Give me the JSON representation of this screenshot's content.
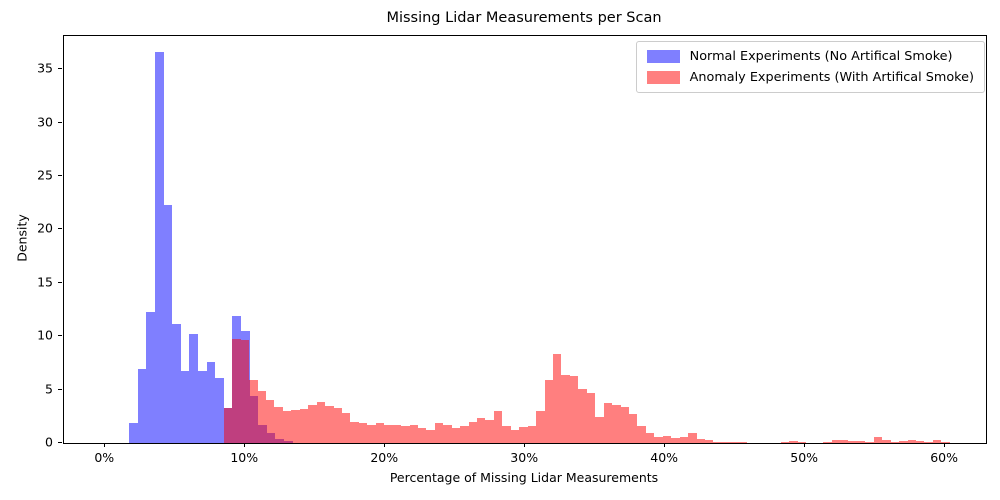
{
  "chart_data": {
    "type": "histogram",
    "title": "Missing Lidar Measurements per Scan",
    "xlabel": "Percentage of Missing Lidar Measurements",
    "ylabel": "Density",
    "x_tick_values": [
      0,
      10,
      20,
      30,
      40,
      50,
      60
    ],
    "x_tick_labels": [
      "0%",
      "10%",
      "20%",
      "30%",
      "40%",
      "50%",
      "60%"
    ],
    "y_tick_values": [
      0,
      5,
      10,
      15,
      20,
      25,
      30,
      35
    ],
    "y_tick_labels": [
      "0",
      "5",
      "10",
      "15",
      "20",
      "25",
      "30",
      "35"
    ],
    "xlim": [
      -2.95,
      62.92
    ],
    "ylim": [
      0,
      38.1
    ],
    "grid": false,
    "legend_position": "upper right",
    "overlap_blend_color": "#BF3F7F",
    "series": [
      {
        "name": "Normal Experiments (No Artifical Smoke)",
        "color": "#0000FF",
        "opacity": 0.5,
        "swatch_color": "#7F7FFF",
        "bin_start_pct": 1.7,
        "bin_width_pct": 0.615,
        "densities": [
          1.9,
          6.9,
          12.3,
          36.6,
          22.3,
          11.1,
          6.7,
          10.2,
          6.7,
          7.6,
          6.1,
          3.3,
          11.9,
          10.5,
          4.4,
          1.7,
          0.9,
          0.4,
          0.2
        ]
      },
      {
        "name": "Anomaly Experiments (With Artifical Smoke)",
        "color": "#FF0000",
        "opacity": 0.5,
        "swatch_color": "#FF7F7F",
        "bin_start_pct": 8.47,
        "bin_width_pct": 0.603,
        "densities": [
          3.3,
          9.7,
          9.6,
          5.9,
          4.9,
          4.0,
          3.4,
          3.0,
          3.1,
          3.2,
          3.6,
          3.8,
          3.5,
          3.25,
          2.8,
          2.0,
          1.9,
          1.7,
          1.9,
          1.7,
          1.7,
          1.55,
          1.7,
          1.4,
          1.25,
          1.9,
          1.7,
          1.4,
          1.55,
          2.0,
          2.3,
          2.2,
          3.0,
          1.55,
          1.25,
          1.5,
          1.55,
          3.0,
          5.9,
          8.3,
          6.4,
          6.3,
          5.1,
          4.7,
          2.4,
          3.75,
          3.6,
          3.35,
          2.7,
          1.55,
          0.95,
          0.6,
          0.7,
          0.5,
          0.6,
          0.9,
          0.4,
          0.25,
          0.1,
          0.05,
          0.1,
          0.05,
          0,
          0,
          0,
          0,
          0.05,
          0.15,
          0.05,
          0,
          0,
          0.05,
          0.25,
          0.25,
          0.2,
          0.15,
          0.1,
          0.55,
          0.3,
          0.1,
          0.15,
          0.25,
          0.2,
          0.05,
          0.3,
          0.05
        ]
      }
    ]
  }
}
